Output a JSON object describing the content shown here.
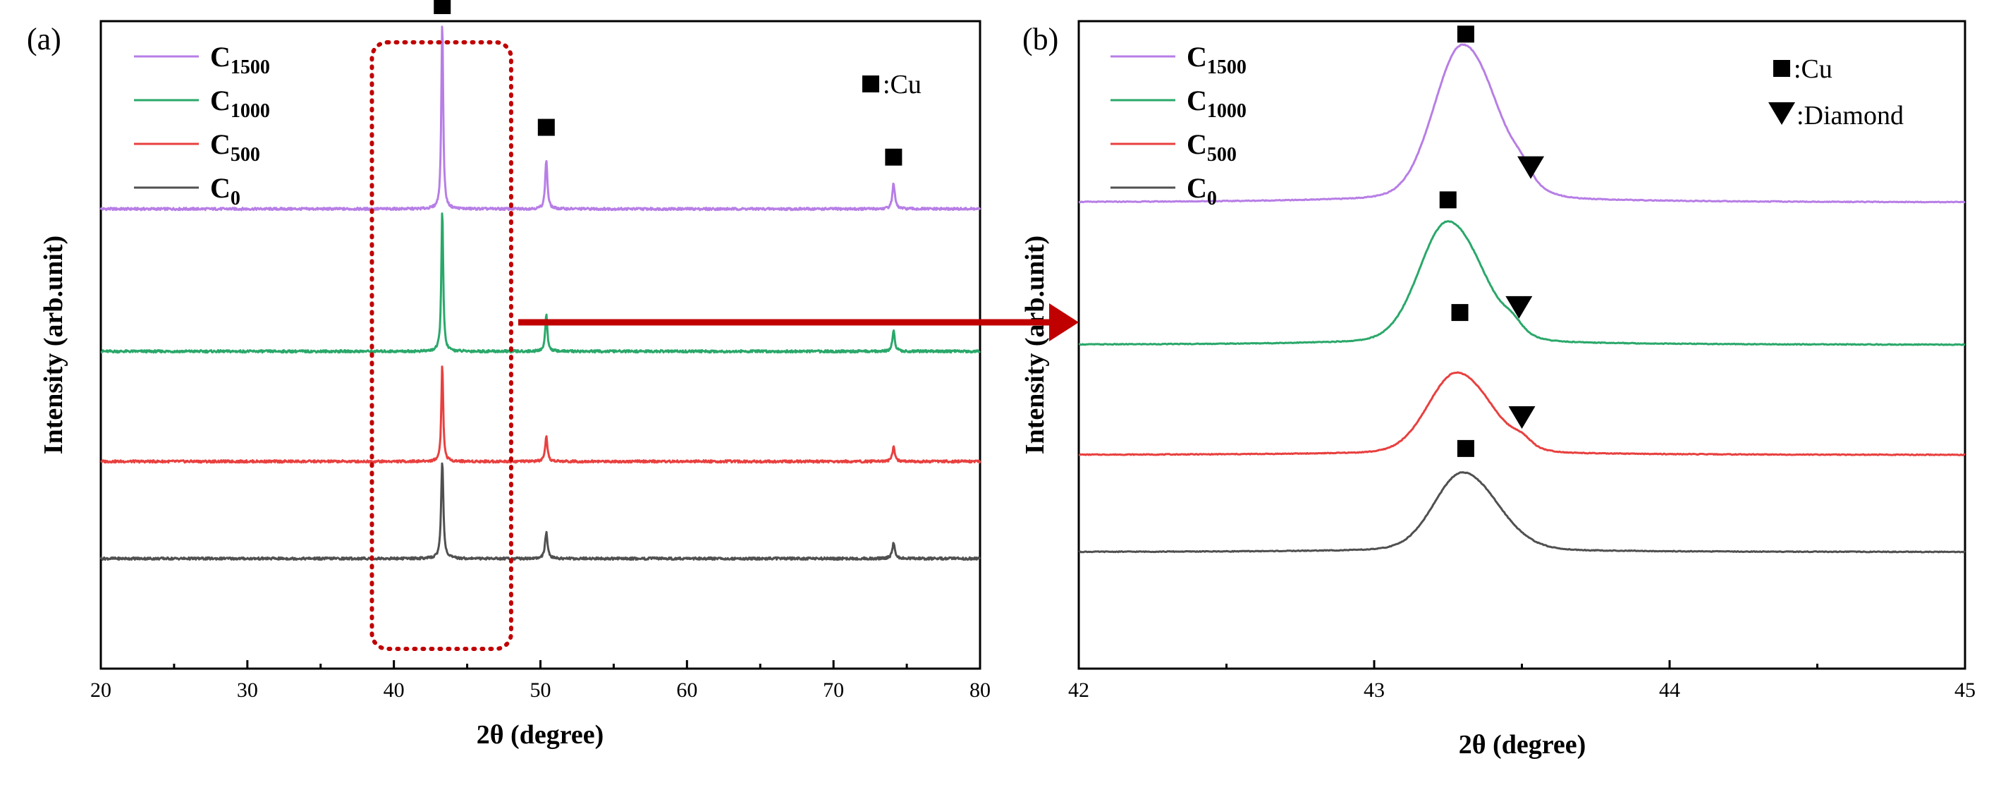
{
  "colors": {
    "C1500": "#b77ee6",
    "C1000": "#2aa86a",
    "C500": "#e8403f",
    "C0": "#505050",
    "arrow": "#c00000",
    "dashed_box": "#c00000",
    "axis": "#000000"
  },
  "figure": {
    "arrow_from": "a",
    "arrow_to": "b",
    "highlight_range_deg": [
      38.5,
      48
    ]
  },
  "chart_data": [
    {
      "id": "a",
      "type": "line",
      "panel_label": "(a)",
      "xlabel": "2θ (degree)",
      "ylabel": "Intensity (arb.unit)",
      "xlim": [
        20,
        80
      ],
      "xticks": [
        "20",
        "30",
        "40",
        "50",
        "60",
        "70",
        "80"
      ],
      "xtick_values": [
        20,
        30,
        40,
        50,
        60,
        70,
        80
      ],
      "yticks_shown": false,
      "series": [
        {
          "key": "C1500",
          "name": "C",
          "sub": "1500",
          "baseline": 3.55,
          "peaks": [
            {
              "x": 43.3,
              "h": 1.45,
              "w": 0.15
            },
            {
              "x": 50.4,
              "h": 0.38,
              "w": 0.18
            },
            {
              "x": 74.1,
              "h": 0.2,
              "w": 0.2
            }
          ]
        },
        {
          "key": "C1000",
          "name": "C",
          "sub": "1000",
          "baseline": 2.45,
          "peaks": [
            {
              "x": 43.3,
              "h": 1.1,
              "w": 0.15
            },
            {
              "x": 50.4,
              "h": 0.28,
              "w": 0.18
            },
            {
              "x": 74.1,
              "h": 0.16,
              "w": 0.2
            }
          ]
        },
        {
          "key": "C500",
          "name": "C",
          "sub": "500",
          "baseline": 1.6,
          "peaks": [
            {
              "x": 43.3,
              "h": 0.75,
              "w": 0.15
            },
            {
              "x": 50.4,
              "h": 0.19,
              "w": 0.18
            },
            {
              "x": 74.1,
              "h": 0.11,
              "w": 0.2
            }
          ]
        },
        {
          "key": "C0",
          "name": "C",
          "sub": "0",
          "baseline": 0.85,
          "peaks": [
            {
              "x": 43.3,
              "h": 0.75,
              "w": 0.18
            },
            {
              "x": 50.4,
              "h": 0.2,
              "w": 0.2
            },
            {
              "x": 74.1,
              "h": 0.12,
              "w": 0.22
            }
          ]
        }
      ],
      "ylim": [
        0,
        5.0
      ],
      "legend_position": "top-left",
      "marker_legend": [
        {
          "symbol": "square",
          "label": ":Cu"
        }
      ],
      "annotations": [
        {
          "symbol": "square",
          "x": 43.3,
          "y": 5.12
        },
        {
          "symbol": "square",
          "x": 50.4,
          "y": 4.18
        },
        {
          "symbol": "square",
          "x": 74.1,
          "y": 3.95
        }
      ]
    },
    {
      "id": "b",
      "type": "line",
      "panel_label": "(b)",
      "xlabel": "2θ (degree)",
      "ylabel": "Intensity (arb.unit)",
      "xlim": [
        42,
        45
      ],
      "xticks": [
        "42",
        "43",
        "44",
        "45"
      ],
      "xtick_values": [
        42,
        43,
        44,
        45
      ],
      "yticks_shown": false,
      "series": [
        {
          "key": "C1500",
          "name": "C",
          "sub": "1500",
          "baseline": 3.6,
          "peak_x": 43.3,
          "peak_h": 1.15,
          "shoulder_x": 43.5,
          "shoulder_h": 0.07
        },
        {
          "key": "C1000",
          "name": "C",
          "sub": "1000",
          "baseline": 2.5,
          "peak_x": 43.25,
          "peak_h": 0.9,
          "shoulder_x": 43.47,
          "shoulder_h": 0.06
        },
        {
          "key": "C500",
          "name": "C",
          "sub": "500",
          "baseline": 1.65,
          "peak_x": 43.28,
          "peak_h": 0.6,
          "shoulder_x": 43.5,
          "shoulder_h": 0.05
        },
        {
          "key": "C0",
          "name": "C",
          "sub": "0",
          "baseline": 0.9,
          "peak_x": 43.3,
          "peak_h": 0.58,
          "shoulder_x": 43.5,
          "shoulder_h": 0.0
        }
      ],
      "ylim": [
        0,
        5.0
      ],
      "legend_position": "top-left",
      "marker_legend": [
        {
          "symbol": "square",
          "label": ":Cu"
        },
        {
          "symbol": "triangle-down",
          "label": ":Diamond"
        }
      ],
      "annotations": [
        {
          "symbol": "square",
          "x": 43.31,
          "y": 4.9
        },
        {
          "symbol": "triangle-down",
          "x": 43.53,
          "y": 3.88
        },
        {
          "symbol": "square",
          "x": 43.25,
          "y": 3.62
        },
        {
          "symbol": "triangle-down",
          "x": 43.49,
          "y": 2.8
        },
        {
          "symbol": "square",
          "x": 43.29,
          "y": 2.75
        },
        {
          "symbol": "triangle-down",
          "x": 43.5,
          "y": 1.95
        },
        {
          "symbol": "square",
          "x": 43.31,
          "y": 1.7
        }
      ]
    }
  ]
}
